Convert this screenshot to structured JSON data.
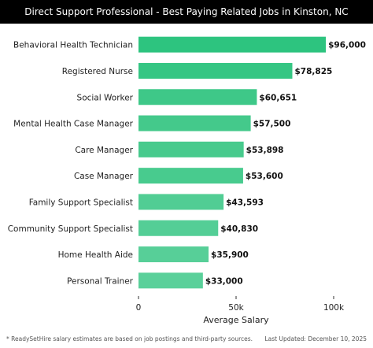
{
  "header": {
    "title": "Direct Support Professional - Best Paying Related Jobs in Kinston, NC"
  },
  "footer": {
    "note": "* ReadySetHire salary estimates are based on job postings and third-party sources.",
    "updated": "Last Updated: December 10, 2025"
  },
  "chart_data": {
    "type": "bar",
    "orientation": "horizontal",
    "title": "Direct Support Professional - Best Paying Related Jobs in Kinston, NC",
    "xlabel": "Average Salary",
    "ylabel": "",
    "xlim": [
      0,
      100000
    ],
    "x_ticks": [
      0,
      50000,
      100000
    ],
    "x_tick_labels": [
      "0",
      "50k",
      "100k"
    ],
    "categories": [
      "Behavioral Health Technician",
      "Registered Nurse",
      "Social Worker",
      "Mental Health Case Manager",
      "Care Manager",
      "Case Manager",
      "Family Support Specialist",
      "Community Support Specialist",
      "Home Health Aide",
      "Personal Trainer"
    ],
    "values": [
      96000,
      78825,
      60651,
      57500,
      53898,
      53600,
      43593,
      40830,
      35900,
      33000
    ],
    "value_labels": [
      "$96,000",
      "$78,825",
      "$60,651",
      "$57,500",
      "$53,898",
      "$53,600",
      "$43,593",
      "$40,830",
      "$35,900",
      "$33,000"
    ],
    "colors": [
      "#2dc47f",
      "#35c683",
      "#3ec888",
      "#44c98b",
      "#47ca8d",
      "#48cb8e",
      "#51cd94",
      "#54ce96",
      "#57cf98",
      "#5ad09a"
    ],
    "grid": false,
    "legend": "none"
  }
}
